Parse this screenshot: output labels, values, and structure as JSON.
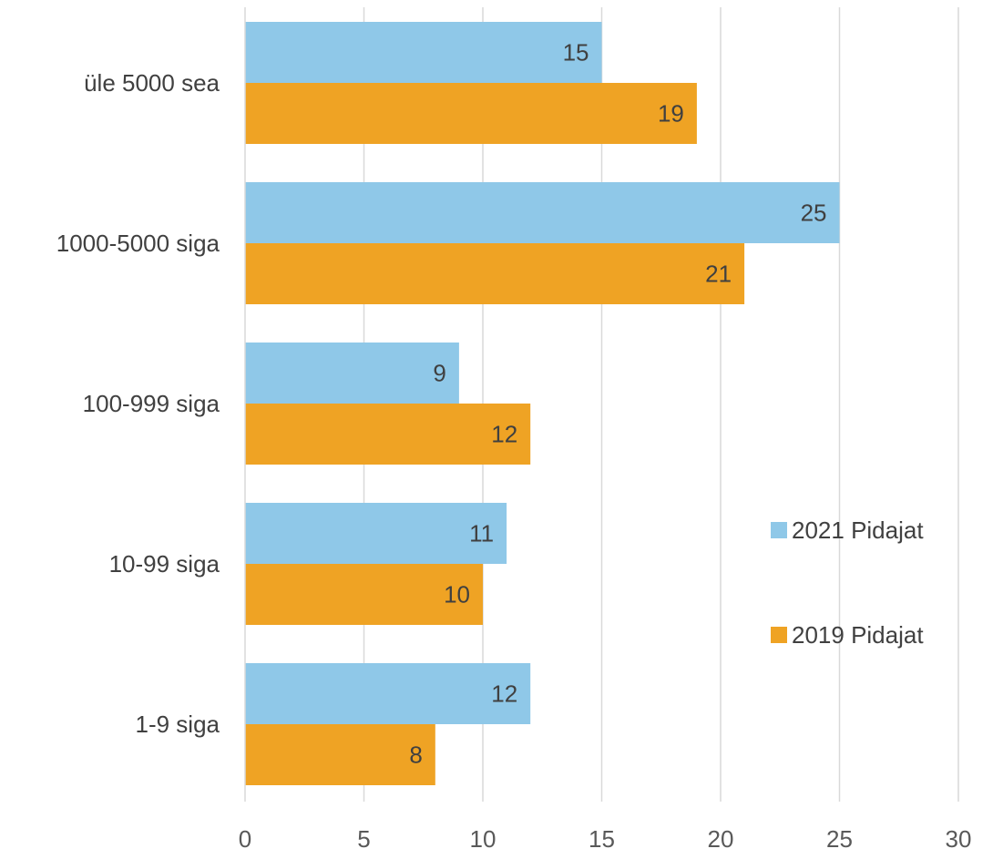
{
  "chart_data": {
    "type": "bar",
    "orientation": "horizontal",
    "categories": [
      "üle 5000 sea",
      "1000-5000 siga",
      "100-999 siga",
      "10-99 siga",
      "1-9 siga"
    ],
    "series": [
      {
        "name": "2021 Pidajat",
        "color": "#8FC8E8",
        "values": [
          15,
          25,
          9,
          11,
          12
        ]
      },
      {
        "name": "2019 Pidajat",
        "color": "#EFA324",
        "values": [
          19,
          21,
          12,
          10,
          8
        ]
      }
    ],
    "xlim": [
      0,
      30
    ],
    "xticks": [
      "0",
      "5",
      "10",
      "15",
      "20",
      "25",
      "30"
    ],
    "grid": true,
    "legend_position": "right",
    "title": "",
    "xlabel": "",
    "ylabel": ""
  }
}
